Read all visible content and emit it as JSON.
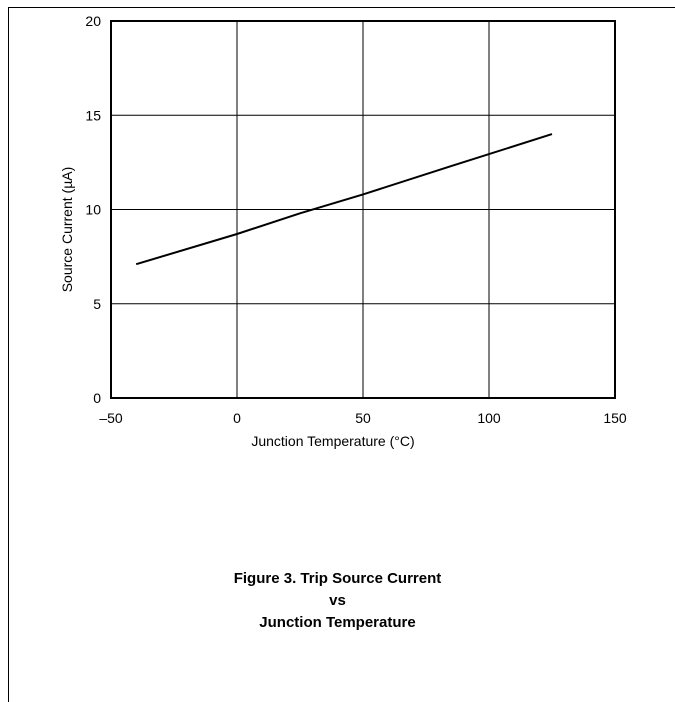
{
  "chart_data": {
    "type": "line",
    "title": "",
    "xlabel": "Junction Temperature  (°C)",
    "ylabel": "Source Current (µA)",
    "xlim": [
      -50,
      150
    ],
    "ylim": [
      0,
      20
    ],
    "xticks": [
      -50,
      0,
      50,
      100,
      150
    ],
    "yticks": [
      0,
      5,
      10,
      15,
      20
    ],
    "xtick_labels": [
      "–50",
      "0",
      "50",
      "100",
      "150"
    ],
    "ytick_labels": [
      "0",
      "5",
      "10",
      "15",
      "20"
    ],
    "grid": true,
    "series": [
      {
        "x": [
          -40,
          0,
          25,
          50,
          85,
          125
        ],
        "values": [
          7.1,
          8.7,
          9.8,
          10.8,
          12.3,
          14.0
        ]
      }
    ]
  },
  "caption": {
    "line1": "Figure 3. Trip Source Current",
    "line2": "vs",
    "line3": "Junction Temperature"
  }
}
